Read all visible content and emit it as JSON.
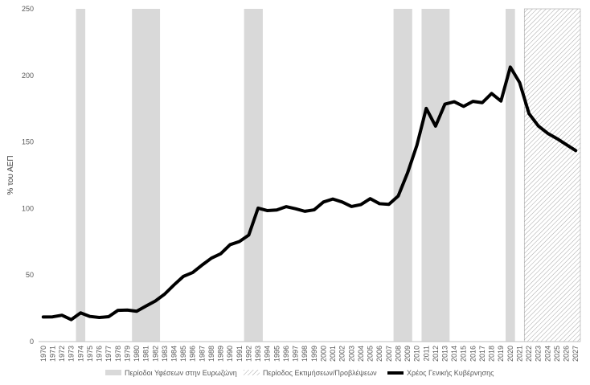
{
  "chart_data": {
    "type": "line",
    "title": "",
    "xlabel": "",
    "ylabel": "% του ΑΕΠ",
    "ylim": [
      0,
      250
    ],
    "yticks": [
      0,
      50,
      100,
      150,
      200,
      250
    ],
    "grid": false,
    "legend_position": "bottom",
    "x": [
      1970,
      1971,
      1972,
      1973,
      1974,
      1975,
      1976,
      1977,
      1978,
      1979,
      1980,
      1981,
      1982,
      1983,
      1984,
      1985,
      1986,
      1987,
      1988,
      1989,
      1990,
      1991,
      1992,
      1993,
      1994,
      1995,
      1996,
      1997,
      1998,
      1999,
      2000,
      2001,
      2002,
      2003,
      2004,
      2005,
      2006,
      2007,
      2008,
      2009,
      2010,
      2011,
      2012,
      2013,
      2014,
      2015,
      2016,
      2017,
      2018,
      2019,
      2020,
      2021,
      2022,
      2023,
      2024,
      2025,
      2026,
      2027
    ],
    "series": [
      {
        "name": "Χρέος Γενικής Κυβέρνησης",
        "color": "#000000",
        "values": [
          18.5,
          18.6,
          19.8,
          16.5,
          21.6,
          18.9,
          18.1,
          18.7,
          23.5,
          23.7,
          22.8,
          26.7,
          30.5,
          35.7,
          42.6,
          49.0,
          51.9,
          57.5,
          62.7,
          66.0,
          72.8,
          75.2,
          80.0,
          100.3,
          98.4,
          98.9,
          101.4,
          99.8,
          97.9,
          99.0,
          104.9,
          107.1,
          104.9,
          101.5,
          102.9,
          107.4,
          103.6,
          103.1,
          109.4,
          126.7,
          147.5,
          175.2,
          161.9,
          178.4,
          180.2,
          176.7,
          180.5,
          179.5,
          186.4,
          180.7,
          206.3,
          194.6,
          171.3,
          162.0,
          156.5,
          152.5,
          148.0,
          143.5
        ]
      }
    ],
    "recessions": {
      "name": "Περίοδοι Υφέσεων στην Ευρωζώνη",
      "color": "#d9d9d9",
      "periods": [
        [
          1974,
          1974
        ],
        [
          1980,
          1982
        ],
        [
          1992,
          1993
        ],
        [
          2008,
          2009
        ],
        [
          2011,
          2013
        ],
        [
          2020,
          2020
        ]
      ]
    },
    "forecast": {
      "name": "Περίοδος Εκτιμήσεων/Προβλέψεων",
      "color": "#bfbfbf",
      "period": [
        2022,
        2027
      ]
    }
  }
}
